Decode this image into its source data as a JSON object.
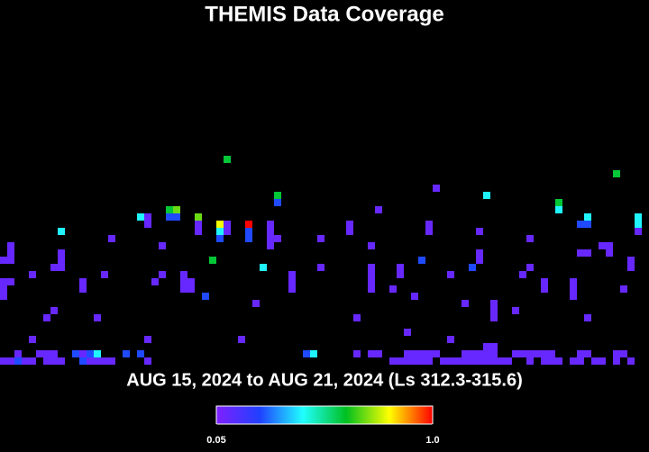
{
  "chart_data": {
    "type": "heatmap",
    "title": "THEMIS Data Coverage",
    "subtitle": "AUG 15, 2024 to AUG 21, 2024 (Ls 312.3-315.6)",
    "xlim": [
      0,
      90
    ],
    "ylim": [
      51,
      0
    ],
    "clim": [
      0.05,
      1
    ],
    "colors": [
      "#8020ff",
      "#2040ff",
      "#20ffff",
      "#00c020",
      "#ffff00",
      "#ff0000"
    ],
    "colorbar_ticks": [
      0.05,
      {
        "value": 1,
        "label": "1.0"
      }
    ],
    "cells": [
      [
        31,
        22,
        0.6
      ],
      [
        85,
        24,
        0.6
      ],
      [
        60,
        26,
        0.1
      ],
      [
        67,
        27,
        0.42
      ],
      [
        38,
        27,
        0.6
      ],
      [
        38,
        28,
        0.25
      ],
      [
        77,
        28,
        0.6
      ],
      [
        77,
        29,
        0.42
      ],
      [
        24,
        29,
        0.7
      ],
      [
        23,
        29,
        0.6
      ],
      [
        23,
        30,
        0.25
      ],
      [
        24,
        30,
        0.25
      ],
      [
        19,
        30,
        0.42
      ],
      [
        20,
        30,
        0.1
      ],
      [
        20,
        31,
        0.1
      ],
      [
        27,
        30,
        0.7
      ],
      [
        27,
        31,
        0.1
      ],
      [
        27,
        32,
        0.1
      ],
      [
        52,
        29,
        0.1
      ],
      [
        81,
        30,
        0.42
      ],
      [
        80,
        31,
        0.25
      ],
      [
        81,
        31,
        0.25
      ],
      [
        88,
        30,
        0.42
      ],
      [
        88,
        31,
        0.42
      ],
      [
        88,
        32,
        0.1
      ],
      [
        30,
        31,
        0.8
      ],
      [
        30,
        32,
        0.42
      ],
      [
        30,
        33,
        0.25
      ],
      [
        34,
        31,
        1.0
      ],
      [
        34,
        32,
        0.25
      ],
      [
        34,
        33,
        0.25
      ],
      [
        37,
        31,
        0.1
      ],
      [
        37,
        32,
        0.1
      ],
      [
        37,
        33,
        0.1
      ],
      [
        37,
        34,
        0.1
      ],
      [
        38,
        33,
        0.1
      ],
      [
        31,
        31,
        0.1
      ],
      [
        31,
        32,
        0.1
      ],
      [
        48,
        31,
        0.1
      ],
      [
        48,
        32,
        0.1
      ],
      [
        59,
        31,
        0.1
      ],
      [
        59,
        32,
        0.1
      ],
      [
        66,
        32,
        0.1
      ],
      [
        8,
        32,
        0.42
      ],
      [
        15,
        33,
        0.1
      ],
      [
        44,
        33,
        0.1
      ],
      [
        73,
        33,
        0.1
      ],
      [
        22,
        34,
        0.1
      ],
      [
        51,
        34,
        0.1
      ],
      [
        1,
        34,
        0.1
      ],
      [
        1,
        35,
        0.1
      ],
      [
        0,
        36,
        0.1
      ],
      [
        1,
        36,
        0.1
      ],
      [
        8,
        35,
        0.1
      ],
      [
        8,
        36,
        0.1
      ],
      [
        7,
        37,
        0.1
      ],
      [
        8,
        37,
        0.1
      ],
      [
        66,
        35,
        0.1
      ],
      [
        66,
        36,
        0.1
      ],
      [
        83,
        34,
        0.1
      ],
      [
        84,
        34,
        0.1
      ],
      [
        84,
        35,
        0.1
      ],
      [
        87,
        36,
        0.1
      ],
      [
        87,
        37,
        0.1
      ],
      [
        80,
        35,
        0.1
      ],
      [
        81,
        35,
        0.1
      ],
      [
        29,
        36,
        0.6
      ],
      [
        58,
        36,
        0.25
      ],
      [
        65,
        37,
        0.25
      ],
      [
        36,
        37,
        0.42
      ],
      [
        44,
        37,
        0.1
      ],
      [
        73,
        37,
        0.1
      ],
      [
        72,
        38,
        0.1
      ],
      [
        55,
        37,
        0.1
      ],
      [
        55,
        38,
        0.1
      ],
      [
        51,
        37,
        0.1
      ],
      [
        51,
        38,
        0.1
      ],
      [
        51,
        39,
        0.1
      ],
      [
        51,
        40,
        0.1
      ],
      [
        4,
        38,
        0.1
      ],
      [
        14,
        38,
        0.1
      ],
      [
        22,
        38,
        0.1
      ],
      [
        25,
        38,
        0.1
      ],
      [
        25,
        39,
        0.1
      ],
      [
        25,
        40,
        0.1
      ],
      [
        26,
        39,
        0.1
      ],
      [
        26,
        40,
        0.1
      ],
      [
        40,
        38,
        0.1
      ],
      [
        40,
        39,
        0.1
      ],
      [
        40,
        40,
        0.1
      ],
      [
        62,
        38,
        0.1
      ],
      [
        75,
        39,
        0.1
      ],
      [
        75,
        40,
        0.1
      ],
      [
        79,
        39,
        0.1
      ],
      [
        79,
        40,
        0.1
      ],
      [
        79,
        41,
        0.1
      ],
      [
        0,
        39,
        0.1
      ],
      [
        1,
        39,
        0.1
      ],
      [
        0,
        40,
        0.1
      ],
      [
        0,
        41,
        0.1
      ],
      [
        11,
        39,
        0.1
      ],
      [
        11,
        40,
        0.1
      ],
      [
        21,
        39,
        0.1
      ],
      [
        54,
        40,
        0.1
      ],
      [
        86,
        40,
        0.1
      ],
      [
        28,
        41,
        0.25
      ],
      [
        57,
        41,
        0.1
      ],
      [
        35,
        42,
        0.1
      ],
      [
        64,
        42,
        0.1
      ],
      [
        68,
        42,
        0.1
      ],
      [
        68,
        43,
        0.1
      ],
      [
        68,
        44,
        0.1
      ],
      [
        7,
        43,
        0.1
      ],
      [
        6,
        44,
        0.1
      ],
      [
        13,
        44,
        0.1
      ],
      [
        49,
        44,
        0.1
      ],
      [
        71,
        43,
        0.1
      ],
      [
        81,
        44,
        0.1
      ],
      [
        56,
        46,
        0.1
      ],
      [
        4,
        47,
        0.1
      ],
      [
        20,
        47,
        0.1
      ],
      [
        33,
        47,
        0.1
      ],
      [
        62,
        47,
        0.1
      ],
      [
        67,
        48,
        0.1
      ],
      [
        68,
        48,
        0.1
      ],
      [
        2,
        49,
        0.1
      ],
      [
        5,
        49,
        0.1
      ],
      [
        6,
        49,
        0.1
      ],
      [
        7,
        49,
        0.1
      ],
      [
        10,
        49,
        0.25
      ],
      [
        11,
        49,
        0.1
      ],
      [
        12,
        49,
        0.25
      ],
      [
        13,
        49,
        0.42
      ],
      [
        17,
        49,
        0.25
      ],
      [
        19,
        49,
        0.25
      ],
      [
        42,
        49,
        0.25
      ],
      [
        43,
        49,
        0.42
      ],
      [
        49,
        49,
        0.1
      ],
      [
        51,
        49,
        0.1
      ],
      [
        52,
        49,
        0.1
      ],
      [
        56,
        49,
        0.1
      ],
      [
        57,
        49,
        0.1
      ],
      [
        58,
        49,
        0.1
      ],
      [
        59,
        49,
        0.1
      ],
      [
        60,
        49,
        0.1
      ],
      [
        64,
        49,
        0.1
      ],
      [
        65,
        49,
        0.1
      ],
      [
        66,
        49,
        0.1
      ],
      [
        67,
        49,
        0.1
      ],
      [
        68,
        49,
        0.1
      ],
      [
        71,
        49,
        0.1
      ],
      [
        72,
        49,
        0.1
      ],
      [
        73,
        49,
        0.1
      ],
      [
        74,
        49,
        0.1
      ],
      [
        75,
        49,
        0.1
      ],
      [
        76,
        49,
        0.1
      ],
      [
        80,
        49,
        0.1
      ],
      [
        81,
        49,
        0.1
      ],
      [
        85,
        49,
        0.1
      ],
      [
        86,
        49,
        0.1
      ],
      [
        0,
        50,
        0.1
      ],
      [
        1,
        50,
        0.1
      ],
      [
        2,
        50,
        0.25
      ],
      [
        3,
        50,
        0.1
      ],
      [
        4,
        50,
        0.1
      ],
      [
        6,
        50,
        0.1
      ],
      [
        7,
        50,
        0.1
      ],
      [
        8,
        50,
        0.1
      ],
      [
        11,
        50,
        0.25
      ],
      [
        12,
        50,
        0.1
      ],
      [
        13,
        50,
        0.1
      ],
      [
        14,
        50,
        0.1
      ],
      [
        15,
        50,
        0.1
      ],
      [
        20,
        50,
        0.1
      ],
      [
        54,
        50,
        0.1
      ],
      [
        55,
        50,
        0.1
      ],
      [
        56,
        50,
        0.1
      ],
      [
        57,
        50,
        0.1
      ],
      [
        58,
        50,
        0.1
      ],
      [
        59,
        50,
        0.1
      ],
      [
        61,
        50,
        0.1
      ],
      [
        62,
        50,
        0.1
      ],
      [
        63,
        50,
        0.1
      ],
      [
        64,
        50,
        0.1
      ],
      [
        65,
        50,
        0.1
      ],
      [
        66,
        50,
        0.1
      ],
      [
        67,
        50,
        0.1
      ],
      [
        68,
        50,
        0.1
      ],
      [
        69,
        50,
        0.1
      ],
      [
        70,
        50,
        0.1
      ],
      [
        73,
        50,
        0.1
      ],
      [
        75,
        50,
        0.1
      ],
      [
        76,
        50,
        0.1
      ],
      [
        77,
        50,
        0.1
      ],
      [
        79,
        50,
        0.1
      ],
      [
        80,
        50,
        0.1
      ],
      [
        82,
        50,
        0.1
      ],
      [
        83,
        50,
        0.1
      ],
      [
        85,
        50,
        0.1
      ],
      [
        87,
        50,
        0.1
      ]
    ]
  }
}
